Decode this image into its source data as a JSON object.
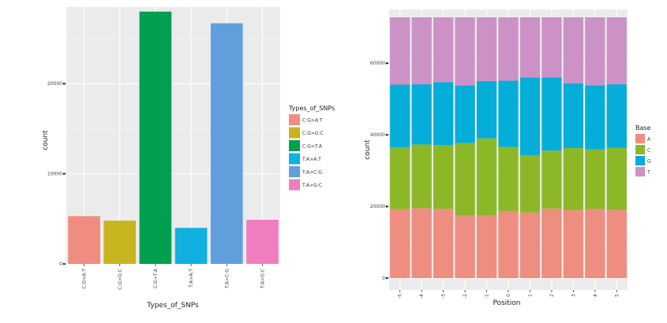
{
  "chart_data": [
    {
      "type": "bar",
      "xlabel": "Types_of_SNPs",
      "ylabel": "count",
      "ylim": [
        0,
        28500
      ],
      "yticks": [
        0,
        10000,
        20000
      ],
      "ytick_labels": [
        "0",
        "10000",
        "20000"
      ],
      "grid": true,
      "categories": [
        "C:G>A:T",
        "C:G>G:C",
        "C:G>T:A",
        "T:A>A:T",
        "T:A>C:G",
        "T:A>G:C"
      ],
      "values": [
        5300,
        4800,
        28000,
        4000,
        26700,
        4900
      ],
      "colors": [
        "#F08C80",
        "#C8B41E",
        "#00A050",
        "#10B0E0",
        "#5FA0DC",
        "#F07EBE"
      ],
      "legend": {
        "title": "Types_of_SNPs",
        "position": "right",
        "entries": [
          "C:G>A:T",
          "C:G>G:C",
          "C:G>T:A",
          "T:A>A:T",
          "T:A>C:G",
          "T:A>G:C"
        ]
      }
    },
    {
      "type": "bar",
      "stacked": true,
      "xlabel": "Position",
      "ylabel": "count",
      "ylim": [
        0,
        75000
      ],
      "yticks": [
        0,
        20000,
        40000,
        60000
      ],
      "ytick_labels": [
        "0",
        "20000",
        "40000",
        "60000"
      ],
      "grid": true,
      "categories": [
        "-5",
        "-4",
        "-3",
        "-2",
        "-1",
        "0",
        "1",
        "2",
        "3",
        "4",
        "5"
      ],
      "series": [
        {
          "name": "A",
          "color": "#EE8E80",
          "values": [
            19200,
            19500,
            19300,
            17500,
            17500,
            18700,
            18300,
            19400,
            19000,
            19300,
            19000
          ]
        },
        {
          "name": "C",
          "color": "#8CB828",
          "values": [
            17300,
            17800,
            17800,
            20200,
            21500,
            17900,
            16000,
            16200,
            17300,
            16600,
            17400
          ]
        },
        {
          "name": "G",
          "color": "#05AED8",
          "values": [
            17500,
            16800,
            17600,
            16100,
            16000,
            18500,
            21700,
            20400,
            18100,
            17900,
            17700
          ]
        },
        {
          "name": "T",
          "color": "#CC92C6",
          "values": [
            18800,
            18700,
            18100,
            19000,
            17800,
            17700,
            16800,
            16800,
            18400,
            19000,
            18700
          ]
        }
      ],
      "legend": {
        "title": "Base",
        "position": "right",
        "entries": [
          "A",
          "C",
          "G",
          "T"
        ]
      }
    }
  ]
}
